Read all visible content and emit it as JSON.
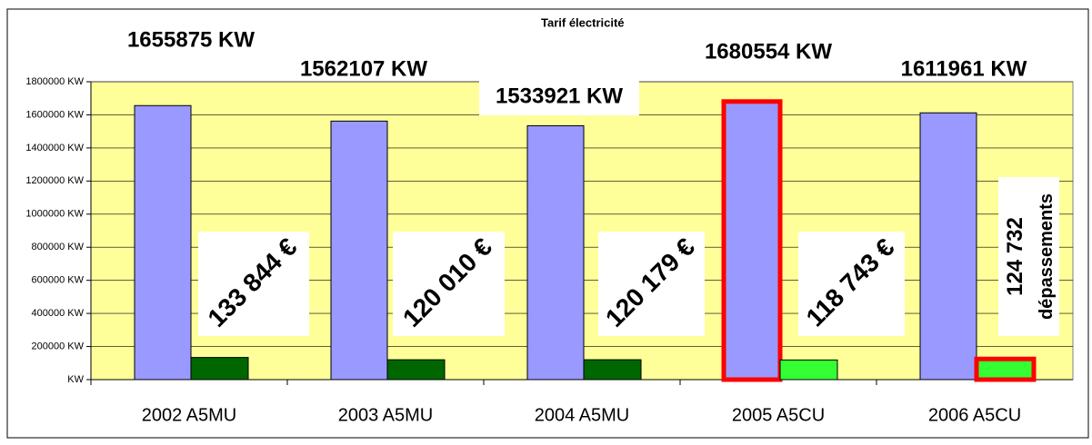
{
  "chart_data": {
    "type": "bar",
    "title": "Tarif électricité",
    "categories": [
      "2002 A5MU",
      "2003 A5MU",
      "2004 A5MU",
      "2005 A5CU",
      "2006 A5CU"
    ],
    "series": [
      {
        "colors": [
          "#9999ff",
          "#9999ff",
          "#9999ff",
          "#9999ff",
          "#9999ff"
        ],
        "edgecolors": [
          null,
          null,
          null,
          "#ff0000",
          null
        ],
        "values": [
          1655875,
          1562107,
          1533921,
          1680554,
          1611961
        ],
        "value_labels": [
          "1655875 KW",
          "1562107 KW",
          "1533921 KW",
          "1680554 KW",
          "1611961 KW"
        ]
      },
      {
        "colors": [
          "#006600",
          "#006600",
          "#006600",
          "#33ff33",
          "#33ff33"
        ],
        "edgecolors": [
          null,
          null,
          null,
          null,
          "#ff0000"
        ],
        "values": [
          133844,
          120010,
          120179,
          118743,
          124732
        ],
        "value_labels": [
          "133 844 €",
          "120 010 €",
          "120 179 €",
          "118 743 €",
          "124 732"
        ]
      }
    ],
    "annotations": [
      "dépassements"
    ],
    "ylim": [
      0,
      1800000
    ],
    "yticks": [
      {
        "value": 0,
        "label": "KW"
      },
      {
        "value": 200000,
        "label": "200000 KW"
      },
      {
        "value": 400000,
        "label": "400000 KW"
      },
      {
        "value": 600000,
        "label": "600000 KW"
      },
      {
        "value": 800000,
        "label": "800000 KW"
      },
      {
        "value": 1000000,
        "label": "1000000 KW"
      },
      {
        "value": 1200000,
        "label": "1200000 KW"
      },
      {
        "value": 1400000,
        "label": "1400000 KW"
      },
      {
        "value": 1600000,
        "label": "1600000 KW"
      },
      {
        "value": 1800000,
        "label": "1800000 KW"
      }
    ],
    "grid": true,
    "plot_background": "#ffff99"
  }
}
